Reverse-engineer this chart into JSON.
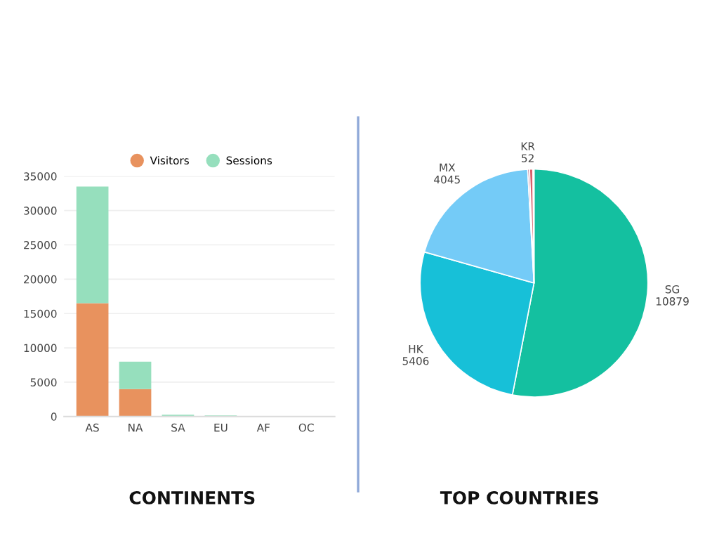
{
  "chart_data": [
    {
      "type": "bar",
      "title": "CONTINENTS",
      "categories": [
        "AS",
        "NA",
        "SA",
        "EU",
        "AF",
        "OC"
      ],
      "stacked": true,
      "series": [
        {
          "name": "Visitors",
          "color": "#e8925e",
          "values": [
            16500,
            4000,
            null,
            null,
            null,
            null
          ]
        },
        {
          "name": "Sessions",
          "color": "#96dfbd",
          "values": [
            17000,
            4000,
            250,
            150,
            null,
            null
          ]
        }
      ],
      "ylim": [
        0,
        35000
      ],
      "yticks": [
        0,
        5000,
        10000,
        15000,
        20000,
        25000,
        30000,
        35000
      ],
      "grid": "y",
      "legend": "top"
    },
    {
      "type": "pie",
      "title": "TOP COUNTRIES",
      "categories": [
        "SG",
        "HK",
        "MX",
        "KR",
        null,
        null
      ],
      "values": [
        10879,
        5406,
        4045,
        52,
        100,
        30
      ],
      "colors": [
        "#14c0a0",
        "#17c0d8",
        "#74cbf7",
        "#b05878",
        "#d8606a",
        "#f0a050"
      ],
      "value_labels": [
        "10879",
        "5406",
        "4045",
        "52",
        null,
        null
      ]
    }
  ]
}
